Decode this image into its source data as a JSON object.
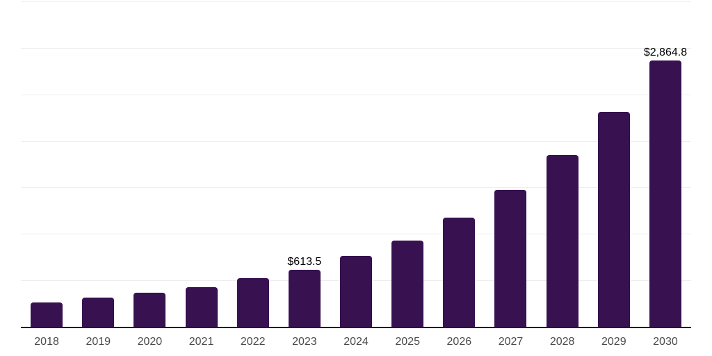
{
  "chart_data": {
    "type": "bar",
    "title": "",
    "xlabel": "",
    "ylabel": "",
    "categories": [
      "2018",
      "2019",
      "2020",
      "2021",
      "2022",
      "2023",
      "2024",
      "2025",
      "2026",
      "2027",
      "2028",
      "2029",
      "2030"
    ],
    "values": [
      264,
      316,
      364,
      429,
      527,
      613.5,
      762,
      930,
      1173,
      1472,
      1847,
      2313,
      2864.8
    ],
    "data_labels": [
      "",
      "",
      "",
      "",
      "",
      "$613.5",
      "",
      "",
      "",
      "",
      "",
      "",
      "$2,864.8"
    ],
    "ylim": [
      0,
      3500
    ],
    "ytick_interval": 500,
    "y_axis_labels_visible": false,
    "grid": true,
    "legend": false,
    "colors": {
      "bar": "#371150",
      "gridline": "#eeeeee",
      "axis_line": "#1f1f1f",
      "tick_label": "#4a4a4a",
      "data_label": "#000000",
      "background": "#ffffff"
    }
  }
}
